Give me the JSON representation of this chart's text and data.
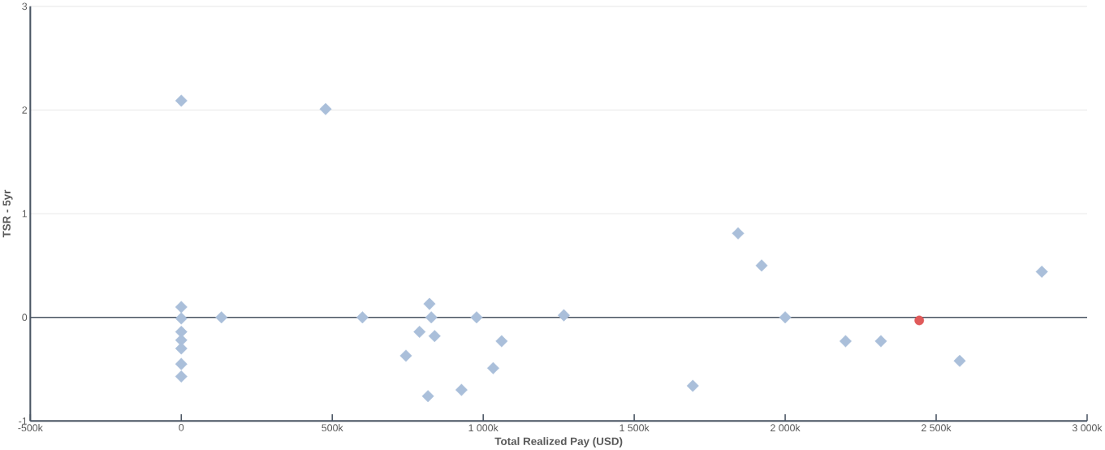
{
  "chart_data": {
    "type": "scatter",
    "xlabel": "Total Realized Pay (USD)",
    "ylabel": "TSR - 5yr",
    "xlim": [
      -500,
      3000
    ],
    "ylim": [
      -1,
      3
    ],
    "xticks": [
      {
        "value": -500,
        "label": "-500k"
      },
      0,
      {
        "value": 500,
        "label": "500k"
      },
      {
        "value": 1000,
        "label": "1 000k"
      },
      {
        "value": 1500,
        "label": "1 500k"
      },
      {
        "value": 2000,
        "label": "2 000k"
      },
      {
        "value": 2500,
        "label": "2 500k"
      },
      {
        "value": 3000,
        "label": "3 000k"
      }
    ],
    "yticks": [
      -1,
      0,
      1,
      2,
      3
    ],
    "grid": "y",
    "ref_lines": [
      {
        "axis": "y",
        "value": 0,
        "color": "#4a5563"
      }
    ],
    "series": [
      {
        "color": "#aabfda",
        "marker": "diamond",
        "x": [
          0,
          0,
          0,
          0,
          0,
          0,
          0,
          0,
          133,
          478,
          600,
          744,
          789,
          817,
          822,
          828,
          839,
          928,
          978,
          1033,
          1061,
          1267,
          1694,
          1844,
          1922,
          2000,
          2200,
          2317,
          2578,
          2850
        ],
        "values": [
          2.09,
          0.1,
          -0.01,
          -0.14,
          -0.22,
          -0.3,
          -0.45,
          -0.57,
          0,
          2.01,
          0,
          -0.37,
          -0.14,
          -0.76,
          0.13,
          0,
          -0.18,
          -0.7,
          0,
          -0.49,
          -0.23,
          0.02,
          -0.66,
          0.81,
          0.5,
          0,
          -0.23,
          -0.23,
          -0.42,
          0.44
        ]
      },
      {
        "color": "#e05a5a",
        "marker": "circle",
        "x": [
          2444
        ],
        "values": [
          -0.03
        ]
      }
    ]
  }
}
